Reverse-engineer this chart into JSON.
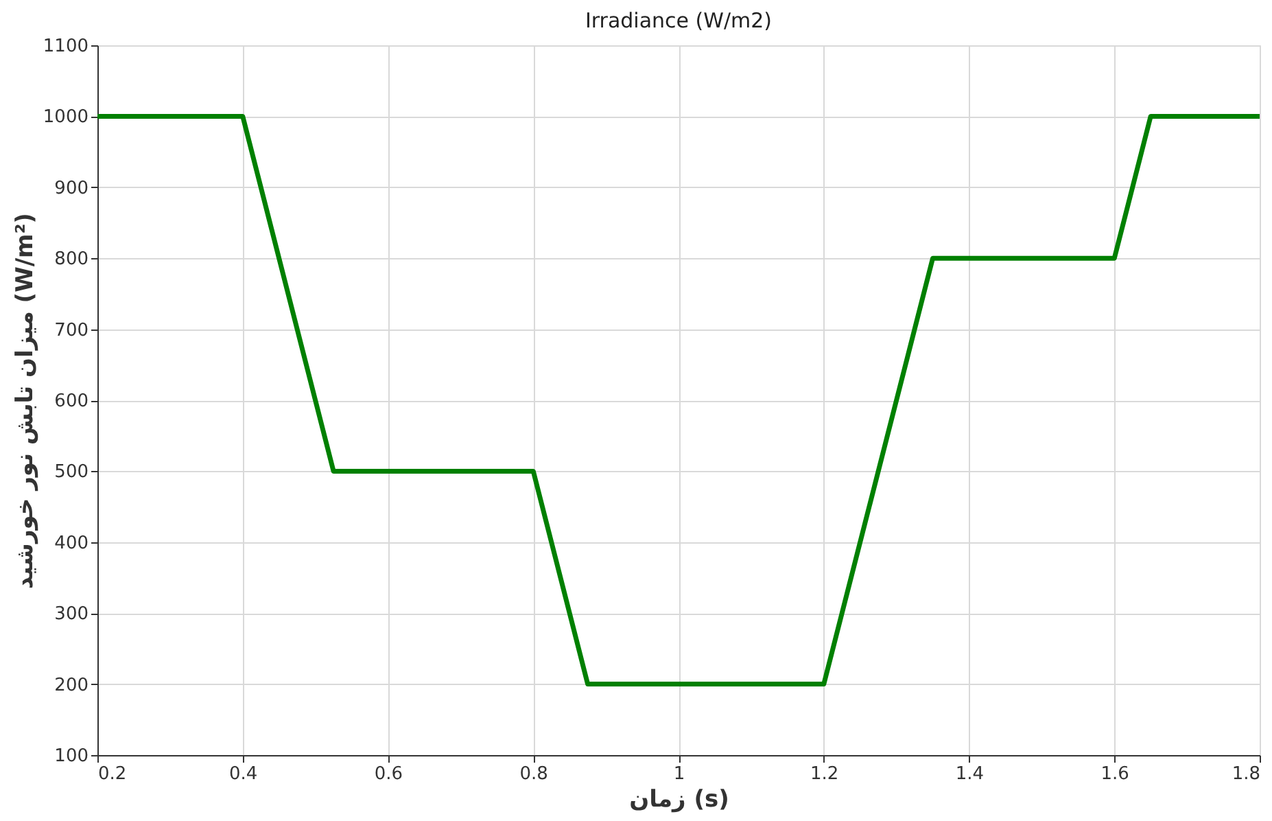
{
  "chart_data": {
    "type": "line",
    "title": "Irradiance (W/m2)",
    "xlabel": "زمان (s)",
    "ylabel": "میزان تابش نور خورشید (W/m²)",
    "x": [
      0.2,
      0.4,
      0.525,
      0.8,
      0.875,
      1.2,
      1.35,
      1.6,
      1.65,
      1.8
    ],
    "series": [
      {
        "color": "#008000",
        "values": [
          1000,
          1000,
          500,
          500,
          200,
          200,
          800,
          800,
          1000,
          1000
        ]
      }
    ],
    "xlim": [
      0.2,
      1.8
    ],
    "xticks": [
      0.2,
      0.4,
      0.6,
      0.8,
      1,
      1.2,
      1.4,
      1.6,
      1.8
    ],
    "ylim": [
      100,
      1100
    ],
    "yticks": [
      100,
      200,
      300,
      400,
      500,
      600,
      700,
      800,
      900,
      1000,
      1100
    ],
    "grid": true,
    "line_style": "solid"
  }
}
